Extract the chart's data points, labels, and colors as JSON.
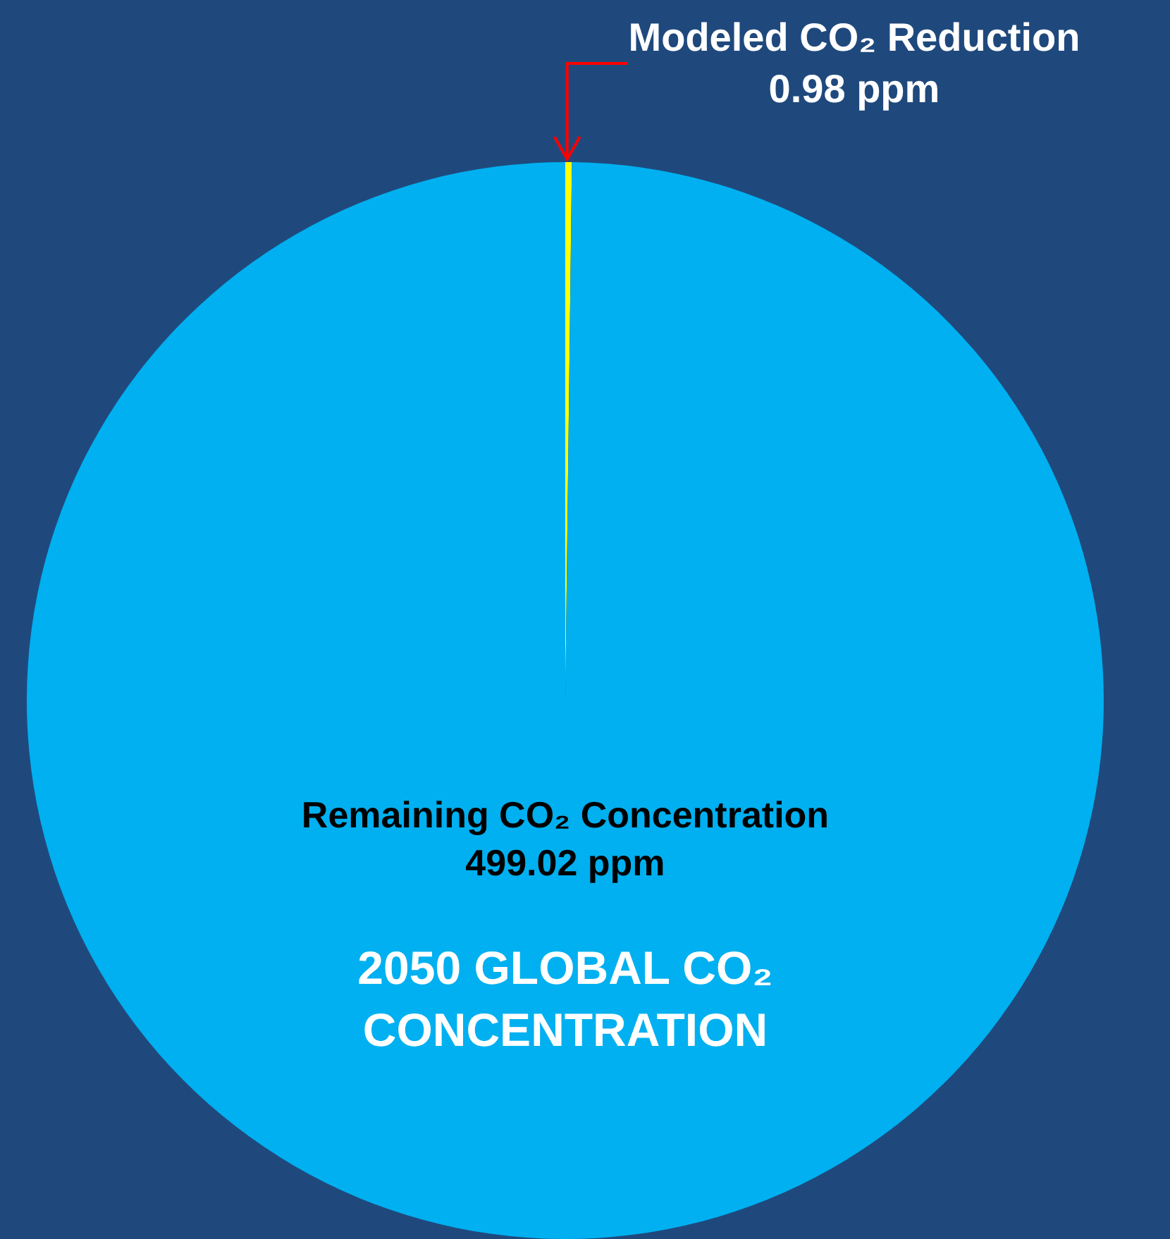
{
  "chart_data": {
    "type": "pie",
    "title": "2050 GLOBAL CO₂ CONCENTRATION",
    "categories": [
      "Modeled CO₂ Reduction",
      "Remaining CO₂ Concentration"
    ],
    "values": [
      0.98,
      499.02
    ],
    "colors": [
      "#ffff00",
      "#00b0f0"
    ],
    "value_labels": [
      "0.98 ppm",
      "499.02 ppm"
    ],
    "legend": false
  }
}
